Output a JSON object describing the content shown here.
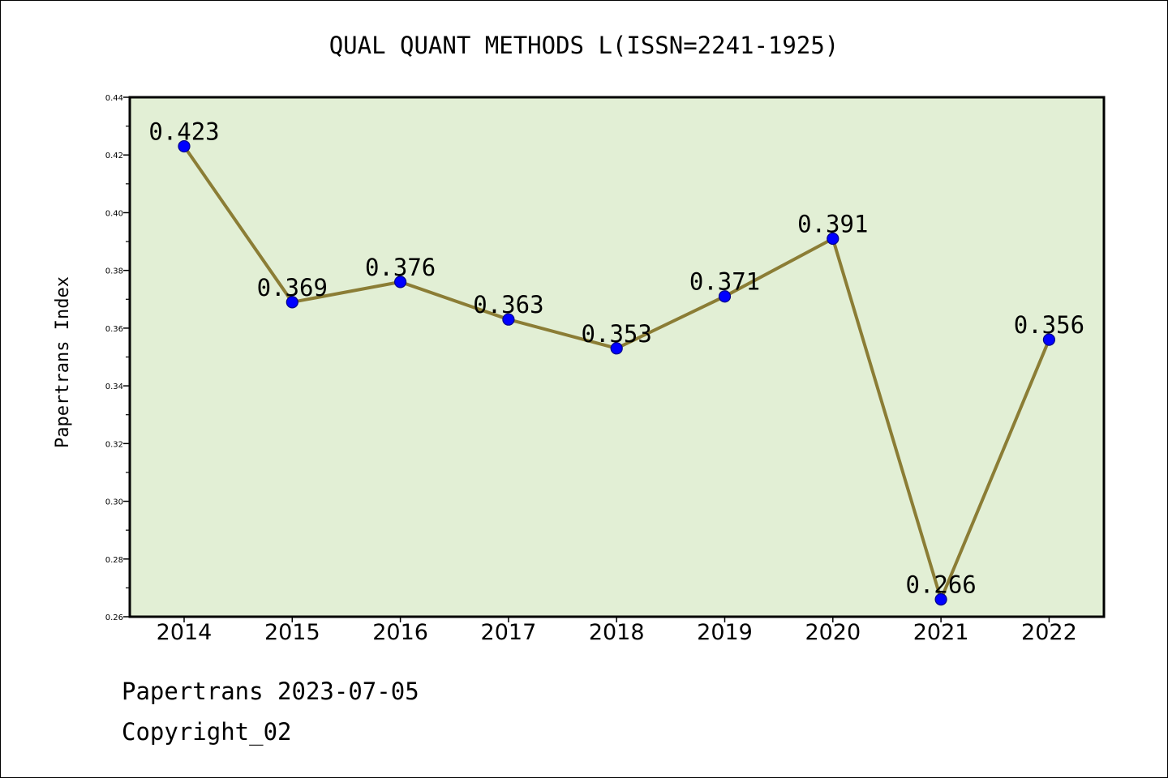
{
  "chart_data": {
    "type": "line",
    "title": "QUAL QUANT METHODS L(ISSN=2241-1925)",
    "xlabel": "",
    "ylabel": "Papertrans Index",
    "categories": [
      "2014",
      "2015",
      "2016",
      "2017",
      "2018",
      "2019",
      "2020",
      "2021",
      "2022"
    ],
    "series": [
      {
        "values": [
          0.423,
          0.369,
          0.376,
          0.363,
          0.353,
          0.371,
          0.391,
          0.266,
          0.356
        ],
        "data_labels": [
          "0.423",
          "0.369",
          "0.376",
          "0.363",
          "0.353",
          "0.371",
          "0.391",
          "0.266",
          "0.356"
        ]
      }
    ],
    "ylim": [
      0.26,
      0.44
    ],
    "yticks": [
      "0.26",
      "0.28",
      "0.30",
      "0.32",
      "0.34",
      "0.36",
      "0.38",
      "0.40",
      "0.42",
      "0.44"
    ],
    "grid": false,
    "legend": "none",
    "colors": {
      "plot_background": "#e2efd5",
      "line": "#8b7d35",
      "marker_fill": "#0000ff",
      "marker_edge": "#00008b",
      "axis": "#000000"
    }
  },
  "footer": {
    "line1": "Papertrans 2023-07-05",
    "line2": "Copyright_02"
  }
}
